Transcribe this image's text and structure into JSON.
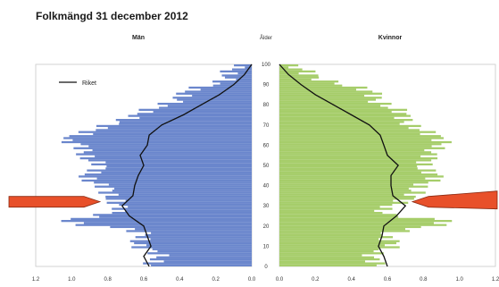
{
  "chart_data": {
    "type": "population-pyramid",
    "title": "Folkmängd 31 december 2012",
    "left_panel": {
      "label": "Män",
      "color": "#6a86cc"
    },
    "right_panel": {
      "label": "Kvinnor",
      "color": "#a6cd6a"
    },
    "age_axis_label": "Ålder",
    "age_ticks": [
      0,
      10,
      20,
      30,
      40,
      50,
      60,
      70,
      80,
      90,
      100
    ],
    "x_ticks_left": [
      "1.2",
      "1.0",
      "0.8",
      "0.6",
      "0.4",
      "0.2",
      "0.0"
    ],
    "x_ticks_right": [
      "0.0",
      "0.2",
      "0.4",
      "0.6",
      "0.8",
      "1.0",
      "1.2"
    ],
    "xlim": [
      0,
      1.2
    ],
    "ylim": [
      0,
      100
    ],
    "legend": {
      "label": "Riket",
      "placement": "top-left of Män panel"
    },
    "series_men_bars": [
      [
        0,
        0.52
      ],
      [
        5,
        0.55
      ],
      [
        10,
        0.6
      ],
      [
        15,
        0.62
      ],
      [
        18,
        0.7
      ],
      [
        20,
        0.9
      ],
      [
        22,
        1.0
      ],
      [
        25,
        0.85
      ],
      [
        28,
        0.75
      ],
      [
        32,
        0.72
      ],
      [
        36,
        0.82
      ],
      [
        40,
        0.85
      ],
      [
        45,
        0.9
      ],
      [
        50,
        0.86
      ],
      [
        55,
        0.9
      ],
      [
        60,
        1.0
      ],
      [
        62,
        1.05
      ],
      [
        65,
        0.9
      ],
      [
        70,
        0.82
      ],
      [
        75,
        0.58
      ],
      [
        80,
        0.5
      ],
      [
        85,
        0.35
      ],
      [
        90,
        0.22
      ],
      [
        95,
        0.12
      ],
      [
        100,
        0.0
      ]
    ],
    "series_men_riket": [
      [
        0,
        0.57
      ],
      [
        5,
        0.6
      ],
      [
        10,
        0.56
      ],
      [
        15,
        0.58
      ],
      [
        20,
        0.6
      ],
      [
        25,
        0.68
      ],
      [
        30,
        0.72
      ],
      [
        35,
        0.66
      ],
      [
        40,
        0.65
      ],
      [
        45,
        0.63
      ],
      [
        50,
        0.6
      ],
      [
        55,
        0.62
      ],
      [
        60,
        0.58
      ],
      [
        65,
        0.57
      ],
      [
        70,
        0.5
      ],
      [
        75,
        0.38
      ],
      [
        80,
        0.28
      ],
      [
        85,
        0.18
      ],
      [
        90,
        0.1
      ],
      [
        95,
        0.04
      ],
      [
        100,
        0.0
      ]
    ],
    "series_women_bars": [
      [
        0,
        0.5
      ],
      [
        5,
        0.55
      ],
      [
        10,
        0.6
      ],
      [
        15,
        0.6
      ],
      [
        20,
        0.85
      ],
      [
        22,
        0.9
      ],
      [
        25,
        0.62
      ],
      [
        28,
        0.6
      ],
      [
        32,
        0.65
      ],
      [
        36,
        0.78
      ],
      [
        40,
        0.8
      ],
      [
        45,
        0.85
      ],
      [
        50,
        0.82
      ],
      [
        55,
        0.8
      ],
      [
        60,
        0.95
      ],
      [
        62,
        0.9
      ],
      [
        65,
        0.8
      ],
      [
        70,
        0.75
      ],
      [
        75,
        0.65
      ],
      [
        80,
        0.6
      ],
      [
        85,
        0.5
      ],
      [
        90,
        0.35
      ],
      [
        95,
        0.15
      ],
      [
        100,
        0.0
      ]
    ],
    "series_women_riket": [
      [
        0,
        0.6
      ],
      [
        5,
        0.58
      ],
      [
        10,
        0.55
      ],
      [
        15,
        0.57
      ],
      [
        20,
        0.58
      ],
      [
        25,
        0.65
      ],
      [
        30,
        0.7
      ],
      [
        35,
        0.63
      ],
      [
        40,
        0.62
      ],
      [
        45,
        0.62
      ],
      [
        50,
        0.66
      ],
      [
        55,
        0.6
      ],
      [
        60,
        0.58
      ],
      [
        65,
        0.56
      ],
      [
        70,
        0.5
      ],
      [
        75,
        0.4
      ],
      [
        80,
        0.3
      ],
      [
        85,
        0.2
      ],
      [
        90,
        0.12
      ],
      [
        95,
        0.05
      ],
      [
        100,
        0.0
      ]
    ],
    "arrows": [
      {
        "side": "left",
        "age": 32,
        "color": "#e8502a"
      },
      {
        "side": "right",
        "age": 32,
        "color": "#e8502a"
      }
    ]
  }
}
